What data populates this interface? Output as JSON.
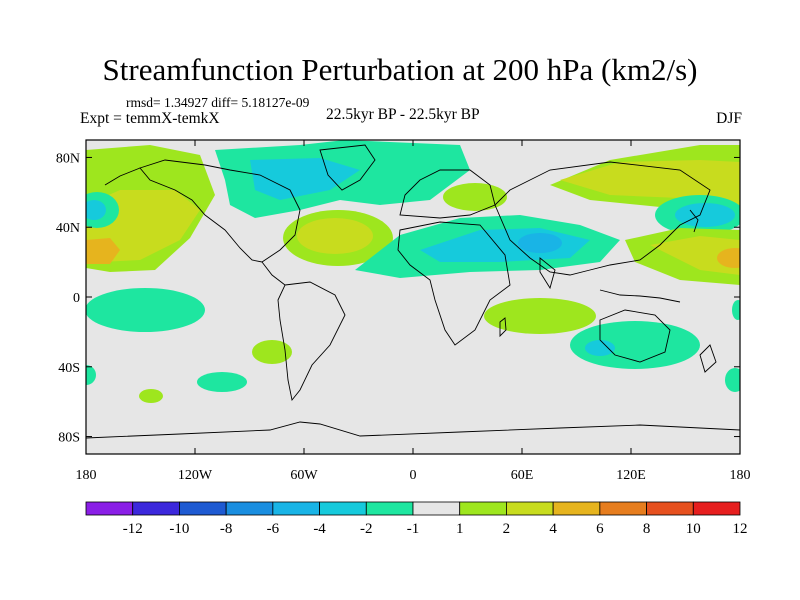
{
  "title": "Streamfunction Perturbation at 200 hPa (km2/s)",
  "stats_text": "rmsd= 1.34927 diff= 5.18127e-09",
  "experiment_text": "Expt = temmX-temkX",
  "period_text": "22.5kyr BP - 22.5kyr BP",
  "season_text": "DJF",
  "axes": {
    "lat_ticks": [
      {
        "value": 80,
        "label": "80N"
      },
      {
        "value": 40,
        "label": "40N"
      },
      {
        "value": 0,
        "label": "0"
      },
      {
        "value": -40,
        "label": "40S"
      },
      {
        "value": -80,
        "label": "80S"
      }
    ],
    "lon_ticks": [
      {
        "value": -180,
        "label": "180"
      },
      {
        "value": -120,
        "label": "120W"
      },
      {
        "value": -60,
        "label": "60W"
      },
      {
        "value": 0,
        "label": "0"
      },
      {
        "value": 60,
        "label": "60E"
      },
      {
        "value": 120,
        "label": "120E"
      },
      {
        "value": 180,
        "label": "180"
      }
    ],
    "lon_range": [
      -180,
      180
    ],
    "lat_range": [
      -90,
      90
    ]
  },
  "colorbar": {
    "labels": [
      "-12",
      "-10",
      "-8",
      "-6",
      "-4",
      "-2",
      "-1",
      "1",
      "2",
      "4",
      "6",
      "8",
      "10",
      "12"
    ],
    "colors": [
      "#8a1ee6",
      "#3c28dc",
      "#1e5ad2",
      "#1a8ee0",
      "#19b4e6",
      "#16cadc",
      "#1ee6a0",
      "#e6e6e6",
      "#9ee61e",
      "#c8dc1e",
      "#e6b41e",
      "#e67d1e",
      "#e6501e",
      "#e61e1e"
    ]
  },
  "colors": {
    "background": "#e6e6e6",
    "neg2": "#1ee6a0",
    "neg4": "#16cadc",
    "neg6": "#19b4e6",
    "pos2": "#9ee61e",
    "pos4": "#c8dc1e",
    "pos6": "#e6b41e"
  }
}
